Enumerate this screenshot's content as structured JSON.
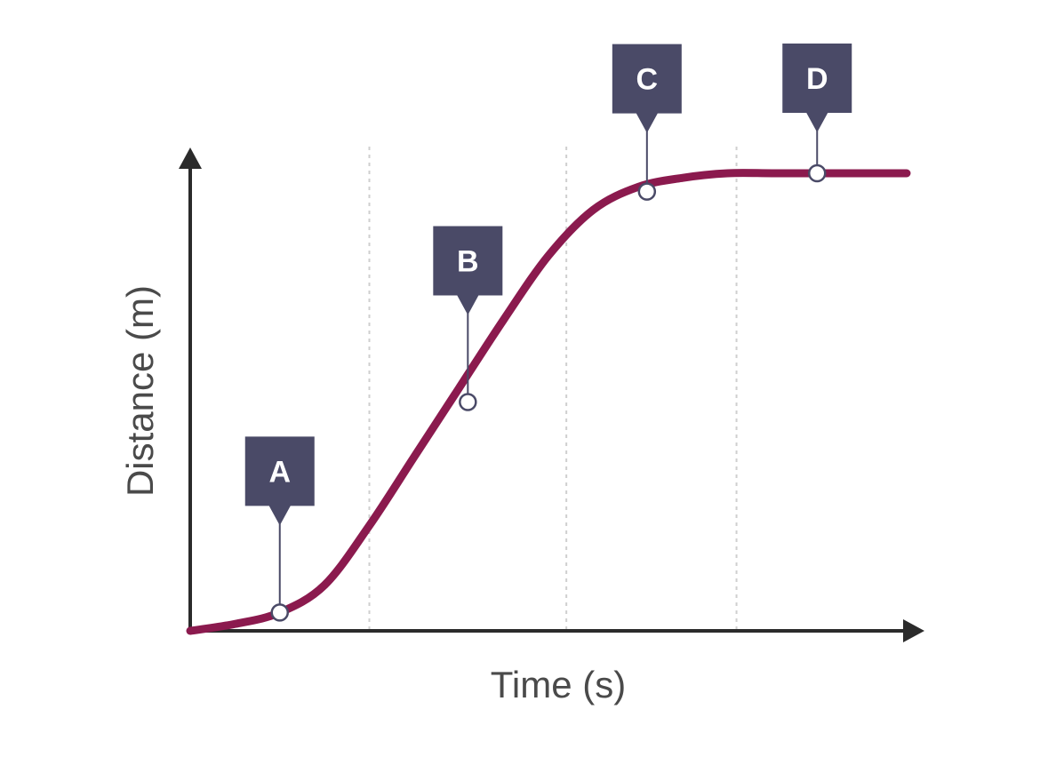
{
  "chart_data": {
    "type": "line",
    "title": "",
    "xlabel": "Time (s)",
    "ylabel": "Distance (m)",
    "xlim": [
      0,
      8
    ],
    "ylim": [
      0,
      10
    ],
    "grid": "vertical dashed lines only",
    "legend": "none",
    "series": [
      {
        "x": [
          0,
          0.5,
          1,
          1.5,
          2,
          2.5,
          3,
          3.5,
          4,
          4.5,
          5,
          5.5,
          6,
          6.5,
          7,
          7.5,
          8
        ],
        "y": [
          0,
          0.15,
          0.4,
          1,
          2.3,
          3.8,
          5.3,
          6.8,
          8.2,
          9.2,
          9.7,
          9.9,
          10,
          10,
          10,
          10,
          10
        ]
      }
    ],
    "annotations": [
      {
        "label": "A",
        "x": 1.0,
        "y": 0.4
      },
      {
        "label": "B",
        "x": 3.1,
        "y": 5.0
      },
      {
        "label": "C",
        "x": 5.1,
        "y": 9.6
      },
      {
        "label": "D",
        "x": 7.0,
        "y": 10.0
      }
    ],
    "gridlines_x": [
      2,
      4.2,
      6.1
    ]
  },
  "colors": {
    "curve": "#8b1a4e",
    "axis": "#2b2b2b",
    "marker_box": "#4a4a67",
    "grid": "#cfcfcf",
    "point_fill": "#ffffff"
  }
}
